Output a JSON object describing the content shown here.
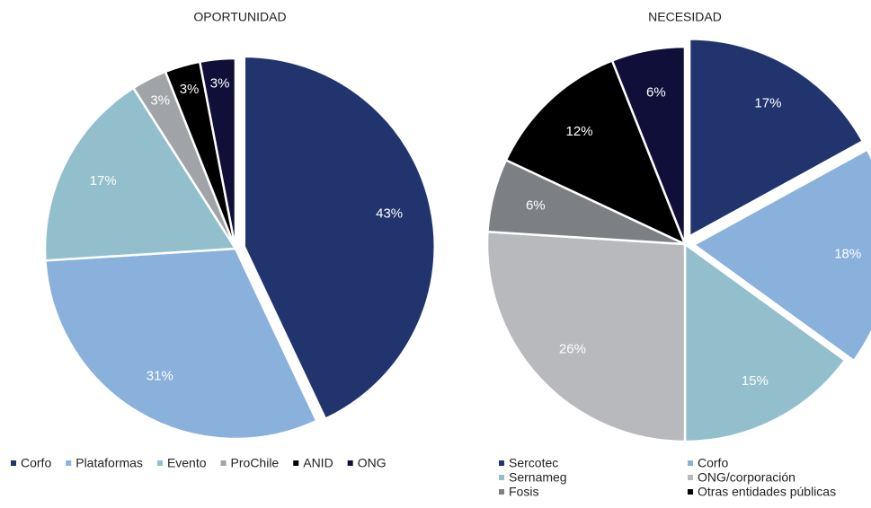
{
  "chart_data": [
    {
      "type": "pie",
      "title": "OPORTUNIDAD",
      "categories": [
        "Corfo",
        "Plataformas",
        "Evento",
        "ProChile",
        "ANID",
        "ONG"
      ],
      "values": [
        43,
        31,
        17,
        3,
        3,
        3
      ],
      "value_labels": [
        "43%",
        "31%",
        "17%",
        "3%",
        "3%",
        "3%"
      ],
      "colors": [
        "#22346e",
        "#8ab0dc",
        "#93bfcc",
        "#a0a4a8",
        "#000000",
        "#0f0f3a"
      ]
    },
    {
      "type": "pie",
      "title": "NECESIDAD",
      "categories": [
        "Sercotec",
        "Corfo",
        "Sernameg",
        "ONG/corporación",
        "Fosis",
        "Otras entidades públicas",
        null
      ],
      "values": [
        17,
        18,
        15,
        26,
        6,
        12,
        6
      ],
      "value_labels": [
        "17%",
        "18%",
        "15%",
        "26%",
        "6%",
        "12%",
        "6%"
      ],
      "colors": [
        "#22346e",
        "#8ab0dc",
        "#93bfcc",
        "#b7b9bd",
        "#7c7f84",
        "#000000",
        "#0f0f3a"
      ]
    }
  ]
}
